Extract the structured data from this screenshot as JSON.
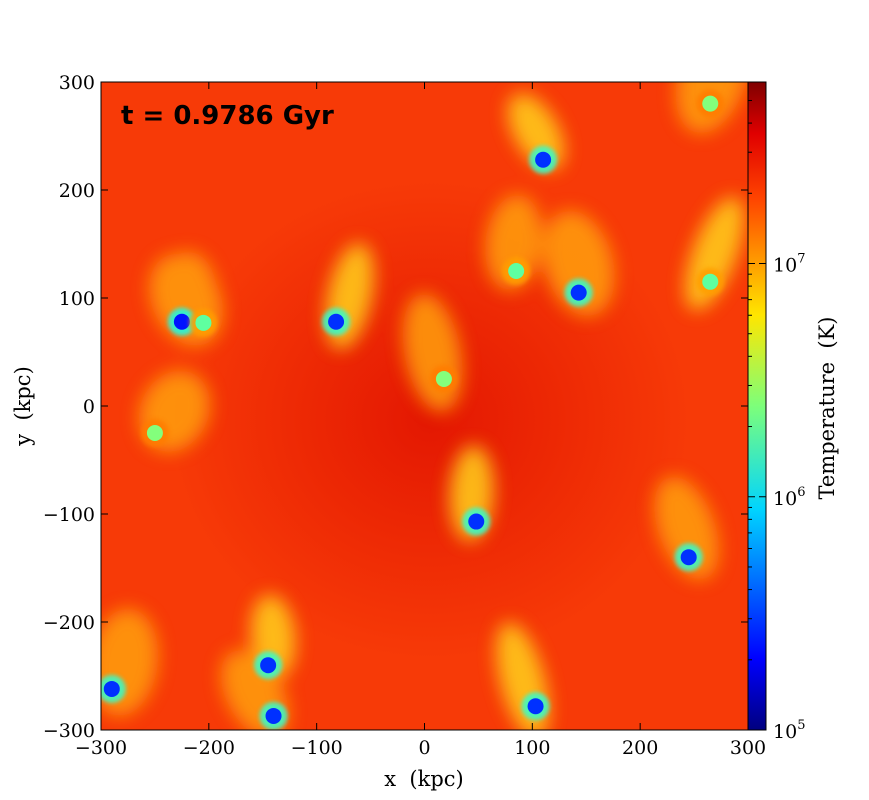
{
  "chart_data": {
    "type": "heatmap",
    "title": "",
    "annotation": "t = 0.9786 Gyr",
    "xlabel": "x  (kpc)",
    "ylabel": "y  (kpc)",
    "xlim": [
      -300,
      300
    ],
    "ylim": [
      -300,
      300
    ],
    "xticks": [
      -300,
      -200,
      -100,
      0,
      100,
      200,
      300
    ],
    "yticks": [
      -300,
      -200,
      -100,
      0,
      100,
      200,
      300
    ],
    "xtick_labels": [
      "−300",
      "−200",
      "−100",
      "0",
      "100",
      "200",
      "300"
    ],
    "ytick_labels": [
      "−300",
      "−200",
      "−100",
      "0",
      "100",
      "200",
      "300"
    ],
    "colorbar": {
      "label": "Temperature  (K)",
      "scale": "log",
      "colormap": "jet",
      "range": [
        100000,
        60000000
      ],
      "ticks": [
        {
          "value": 100000,
          "base": "10",
          "exp": "5"
        },
        {
          "value": 1000000,
          "base": "10",
          "exp": "6"
        },
        {
          "value": 10000000,
          "base": "10",
          "exp": "7"
        }
      ]
    },
    "background_temperature_K": 25000000,
    "cold_clumps": [
      {
        "x": 110,
        "y": 228,
        "T": 300000
      },
      {
        "x": 85,
        "y": 125,
        "T": 2000000
      },
      {
        "x": 143,
        "y": 105,
        "T": 300000
      },
      {
        "x": 265,
        "y": 115,
        "T": 2000000
      },
      {
        "x": -225,
        "y": 78,
        "T": 250000
      },
      {
        "x": -205,
        "y": 77,
        "T": 2000000
      },
      {
        "x": -82,
        "y": 78,
        "T": 300000
      },
      {
        "x": 18,
        "y": 25,
        "T": 2500000
      },
      {
        "x": -250,
        "y": -25,
        "T": 2500000
      },
      {
        "x": 48,
        "y": -107,
        "T": 300000
      },
      {
        "x": 245,
        "y": -140,
        "T": 300000
      },
      {
        "x": 265,
        "y": 280,
        "T": 2500000
      },
      {
        "x": -145,
        "y": -240,
        "T": 300000
      },
      {
        "x": -140,
        "y": -287,
        "T": 300000
      },
      {
        "x": -290,
        "y": -262,
        "T": 300000
      },
      {
        "x": 103,
        "y": -278,
        "T": 300000
      }
    ]
  }
}
